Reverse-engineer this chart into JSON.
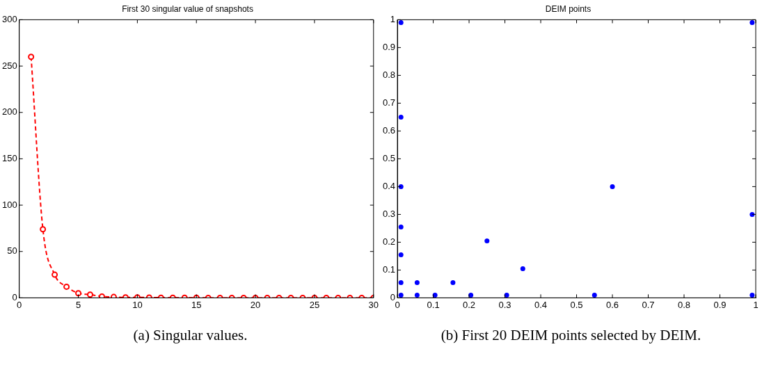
{
  "chart_data": [
    {
      "type": "line",
      "title": "First 30 singular value of snapshots",
      "x": [
        1,
        2,
        3,
        4,
        5,
        6,
        7,
        8,
        9,
        10,
        11,
        12,
        13,
        14,
        15,
        16,
        17,
        18,
        19,
        20,
        21,
        22,
        23,
        24,
        25,
        26,
        27,
        28,
        29,
        30
      ],
      "series": [
        {
          "color": "#ff0000",
          "values": [
            260,
            74,
            25,
            12,
            5,
            3.5,
            1.5,
            1,
            0.5,
            0.5,
            0.3,
            0.2,
            0.2,
            0.1,
            0.1,
            0,
            0,
            0,
            0,
            0,
            0,
            0,
            0,
            0,
            0,
            0,
            0,
            0,
            0,
            0
          ]
        }
      ],
      "xlim": [
        0,
        30
      ],
      "xticks": [
        0,
        5,
        10,
        15,
        20,
        25,
        30
      ],
      "ylim": [
        0,
        300
      ],
      "yticks": [
        0,
        50,
        100,
        150,
        200,
        250,
        300
      ],
      "marker": "circle",
      "line_style": "dashed",
      "annotations": [
        "(a) Singular values."
      ]
    },
    {
      "type": "scatter",
      "title": "DEIM points",
      "series": [
        {
          "color": "#0000ff",
          "x": [
            0.01,
            0.99,
            0.01,
            0.01,
            0.6,
            0.99,
            0.01,
            0.25,
            0.01,
            0.35,
            0.01,
            0.055,
            0.155,
            0.01,
            0.055,
            0.105,
            0.205,
            0.305,
            0.55,
            0.99
          ],
          "values": [
            0.99,
            0.99,
            0.65,
            0.4,
            0.4,
            0.3,
            0.255,
            0.205,
            0.155,
            0.105,
            0.055,
            0.055,
            0.055,
            0.01,
            0.01,
            0.01,
            0.01,
            0.01,
            0.01,
            0.01
          ]
        }
      ],
      "xlim": [
        0,
        1
      ],
      "xticks": [
        0,
        0.1,
        0.2,
        0.3,
        0.4,
        0.5,
        0.6,
        0.7,
        0.8,
        0.9,
        1
      ],
      "ylim": [
        0,
        1
      ],
      "yticks": [
        0,
        0.1,
        0.2,
        0.3,
        0.4,
        0.5,
        0.6,
        0.7,
        0.8,
        0.9,
        1
      ],
      "marker": "circle",
      "annotations": [
        "(b) First 20 DEIM points selected by DEIM."
      ]
    }
  ]
}
